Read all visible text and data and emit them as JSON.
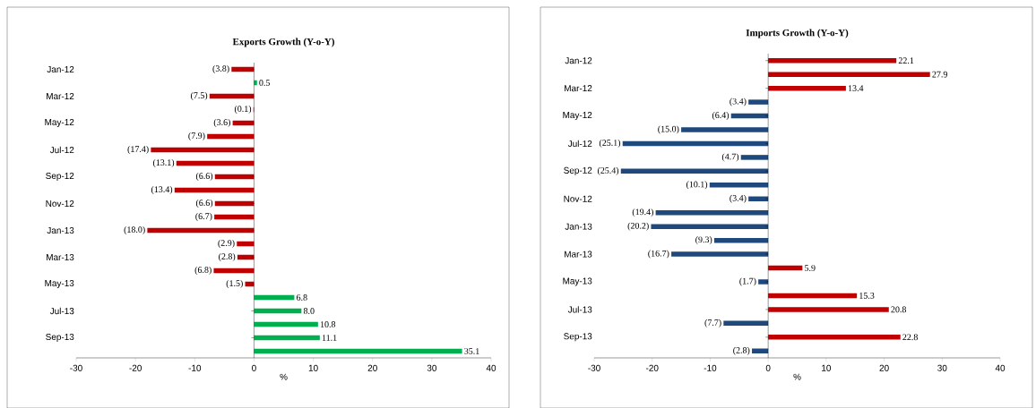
{
  "chart_data": [
    {
      "type": "bar",
      "orientation": "horizontal",
      "title": "Exports Growth (Y-o-Y)",
      "xlabel": "%",
      "categories": [
        "Jan-12",
        null,
        "Mar-12",
        null,
        "May-12",
        null,
        "Jul-12",
        null,
        "Sep-12",
        null,
        "Nov-12",
        null,
        "Jan-13",
        null,
        "Mar-13",
        null,
        "May-13",
        null,
        "Jul-13",
        null,
        "Sep-13",
        null
      ],
      "values": [
        -3.8,
        0.5,
        -7.5,
        -0.1,
        -3.6,
        -7.9,
        -17.4,
        -13.1,
        -6.6,
        -13.4,
        -6.6,
        -6.7,
        -18.0,
        -2.9,
        -2.8,
        -6.8,
        -1.5,
        6.8,
        8.0,
        10.8,
        11.1,
        35.1
      ],
      "value_labels": [
        "(3.8)",
        "0.5",
        "(7.5)",
        "(0.1)",
        "(3.6)",
        "(7.9)",
        "(17.4)",
        "(13.1)",
        "(6.6)",
        "(13.4)",
        "(6.6)",
        "(6.7)",
        "(18.0)",
        "(2.9)",
        "(2.8)",
        "(6.8)",
        "(1.5)",
        "6.8",
        "8.0",
        "10.8",
        "11.1",
        "35.1"
      ],
      "colors": [
        "#c00000",
        "#00b050",
        "#c00000",
        "#c00000",
        "#c00000",
        "#c00000",
        "#c00000",
        "#c00000",
        "#c00000",
        "#c00000",
        "#c00000",
        "#c00000",
        "#c00000",
        "#c00000",
        "#c00000",
        "#c00000",
        "#c00000",
        "#00b050",
        "#00b050",
        "#00b050",
        "#00b050",
        "#00b050"
      ],
      "xlim": [
        -30,
        40
      ],
      "xticks": [
        -30,
        -20,
        -10,
        0,
        10,
        20,
        30,
        40
      ]
    },
    {
      "type": "bar",
      "orientation": "horizontal",
      "title": "Imports Growth (Y-o-Y)",
      "xlabel": "%",
      "categories": [
        "Jan-12",
        null,
        "Mar-12",
        null,
        "May-12",
        null,
        "Jul-12",
        null,
        "Sep-12",
        null,
        "Nov-12",
        null,
        "Jan-13",
        null,
        "Mar-13",
        null,
        "May-13",
        null,
        "Jul-13",
        null,
        "Sep-13",
        null
      ],
      "values": [
        22.1,
        27.9,
        13.4,
        -3.4,
        -6.4,
        -15.0,
        -25.1,
        -4.7,
        -25.4,
        -10.1,
        -3.4,
        -19.4,
        -20.2,
        -9.3,
        -16.7,
        5.9,
        -1.7,
        15.3,
        20.8,
        -7.7,
        22.8,
        -2.8
      ],
      "value_labels": [
        "22.1",
        "27.9",
        "13.4",
        "(3.4)",
        "(6.4)",
        "(15.0)",
        "(25.1)",
        "(4.7)",
        "(25.4)",
        "(10.1)",
        "(3.4)",
        "(19.4)",
        "(20.2)",
        "(9.3)",
        "(16.7)",
        "5.9",
        "(1.7)",
        "15.3",
        "20.8",
        "(7.7)",
        "22.8",
        "(2.8)"
      ],
      "colors": [
        "#c00000",
        "#c00000",
        "#c00000",
        "#1f497d",
        "#1f497d",
        "#1f497d",
        "#1f497d",
        "#1f497d",
        "#1f497d",
        "#1f497d",
        "#1f497d",
        "#1f497d",
        "#1f497d",
        "#1f497d",
        "#1f497d",
        "#c00000",
        "#1f497d",
        "#c00000",
        "#c00000",
        "#1f497d",
        "#c00000",
        "#1f497d"
      ],
      "xlim": [
        -30,
        40
      ],
      "xticks": [
        -30,
        -20,
        -10,
        0,
        10,
        20,
        30,
        40
      ]
    }
  ]
}
